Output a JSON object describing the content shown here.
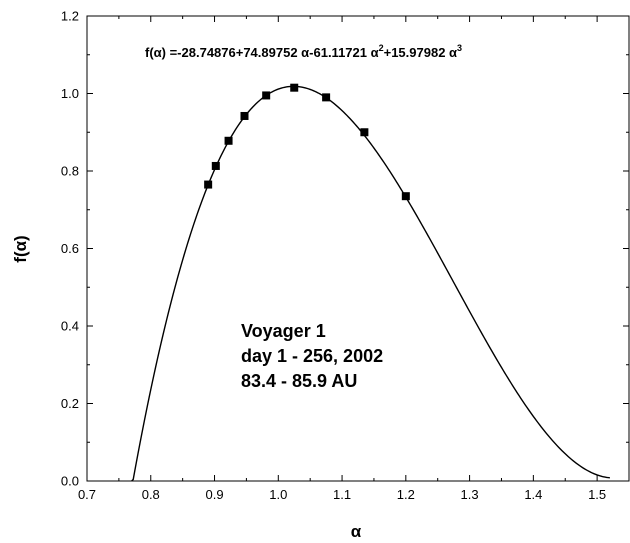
{
  "chart_data": {
    "type": "scatter",
    "title": "",
    "xlabel": "α",
    "ylabel": "f(α)",
    "xlim": [
      0.7,
      1.55
    ],
    "ylim": [
      0.0,
      1.2
    ],
    "xticks": [
      0.7,
      0.8,
      0.9,
      1.0,
      1.1,
      1.2,
      1.3,
      1.4,
      1.5
    ],
    "xtick_labels": [
      "0.7",
      "0.8",
      "0.9",
      "1.0",
      "1.1",
      "1.2",
      "1.3",
      "1.4",
      "1.5"
    ],
    "yticks": [
      0.0,
      0.2,
      0.4,
      0.6,
      0.8,
      1.0,
      1.2
    ],
    "ytick_labels": [
      "0.0",
      "0.2",
      "0.4",
      "0.6",
      "0.8",
      "1.0",
      "1.2"
    ],
    "grid": false,
    "legend": false,
    "series": [
      {
        "kind": "points",
        "marker": "square",
        "color": "#000000",
        "x": [
          0.89,
          0.902,
          0.922,
          0.947,
          0.981,
          1.025,
          1.075,
          1.135,
          1.2
        ],
        "y": [
          0.765,
          0.813,
          0.878,
          0.942,
          0.995,
          1.015,
          0.99,
          0.9,
          0.735
        ]
      },
      {
        "kind": "fit-curve",
        "color": "#000000",
        "coefficients": [
          -28.74876,
          74.89752,
          -61.11721,
          15.97982
        ],
        "x_range": [
          0.77,
          1.52
        ]
      }
    ],
    "annotations": {
      "equation": {
        "prefix": "f(α) =-28.74876+74.89752 α-61.11721 α",
        "sq": "2",
        "mid": "+15.97982 α",
        "cube": "3"
      },
      "info_lines": [
        "Voyager 1",
        "day 1 - 256, 2002",
        "83.4 - 85.9 AU"
      ]
    }
  }
}
